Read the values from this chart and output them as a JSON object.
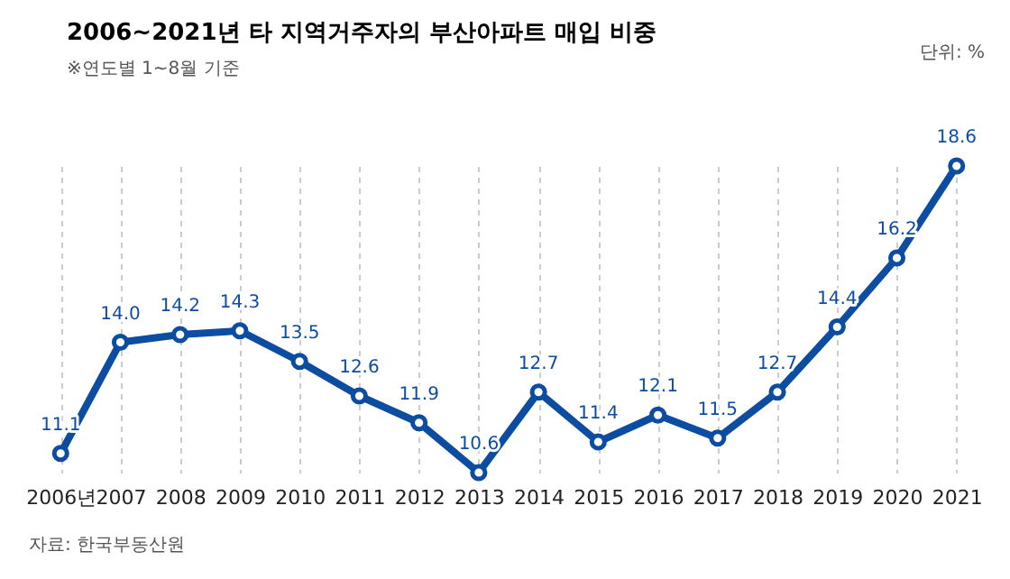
{
  "chart_data": {
    "type": "line",
    "title": "2006~2021년 타 지역거주자의 부산아파트 매입 비중",
    "subtitle": "※연도별 1~8월 기준",
    "annotations": [
      "단위: %",
      "자료: 한국부동산원"
    ],
    "categories": [
      "2006년",
      "2007",
      "2008",
      "2009",
      "2010",
      "2011",
      "2012",
      "2013",
      "2014",
      "2015",
      "2016",
      "2017",
      "2018",
      "2019",
      "2020",
      "2021"
    ],
    "series": [
      {
        "color": "#0c4da2",
        "values": [
          11.1,
          14.0,
          14.2,
          14.3,
          13.5,
          12.6,
          11.9,
          10.6,
          12.7,
          11.4,
          12.1,
          11.5,
          12.7,
          14.4,
          16.2,
          18.6
        ],
        "value_labels": [
          "11.1",
          "14.0",
          "14.2",
          "14.3",
          "13.5",
          "12.6",
          "11.9",
          "10.6",
          "12.7",
          "11.4",
          "12.1",
          "11.5",
          "12.7",
          "14.4",
          "16.2",
          "18.6"
        ]
      }
    ],
    "grid": "x",
    "marker": "circle",
    "line_style": "solid"
  }
}
